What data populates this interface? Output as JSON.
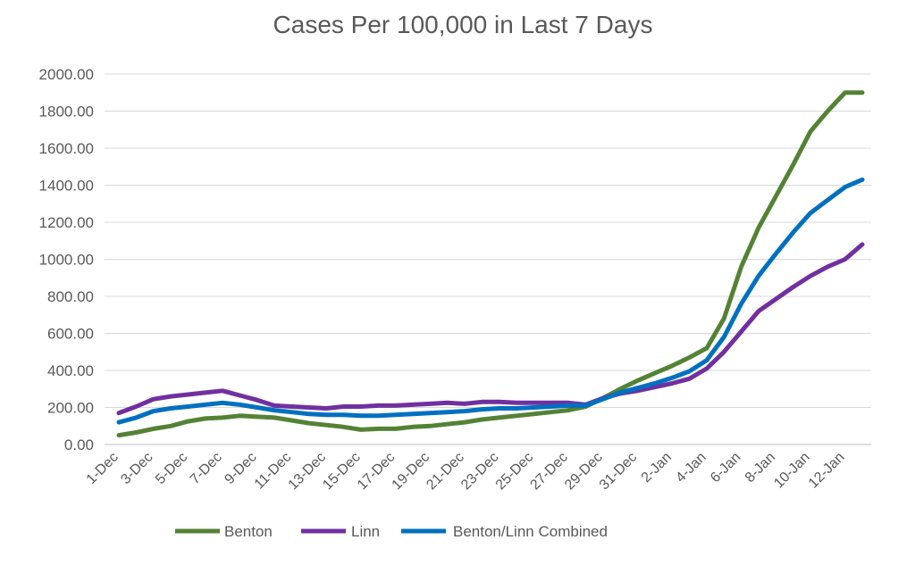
{
  "chart_data": {
    "type": "line",
    "title": "Cases Per 100,000 in Last 7 Days",
    "xlabel": "",
    "ylabel": "",
    "ylim": [
      0,
      2000
    ],
    "y_ticks": [
      "0.00",
      "200.00",
      "400.00",
      "600.00",
      "800.00",
      "1000.00",
      "1200.00",
      "1400.00",
      "1600.00",
      "1800.00",
      "2000.00"
    ],
    "grid": true,
    "legend_position": "bottom",
    "x": [
      "1-Dec",
      "2-Dec",
      "3-Dec",
      "4-Dec",
      "5-Dec",
      "6-Dec",
      "7-Dec",
      "8-Dec",
      "9-Dec",
      "10-Dec",
      "11-Dec",
      "12-Dec",
      "13-Dec",
      "14-Dec",
      "15-Dec",
      "16-Dec",
      "17-Dec",
      "18-Dec",
      "19-Dec",
      "20-Dec",
      "21-Dec",
      "22-Dec",
      "23-Dec",
      "24-Dec",
      "25-Dec",
      "26-Dec",
      "27-Dec",
      "28-Dec",
      "29-Dec",
      "30-Dec",
      "31-Dec",
      "1-Jan",
      "2-Jan",
      "3-Jan",
      "4-Jan",
      "5-Jan",
      "6-Jan",
      "7-Jan",
      "8-Jan",
      "9-Jan",
      "10-Jan",
      "11-Jan",
      "12-Jan",
      "13-Jan"
    ],
    "x_tick_labels": [
      "1-Dec",
      "3-Dec",
      "5-Dec",
      "7-Dec",
      "9-Dec",
      "11-Dec",
      "13-Dec",
      "15-Dec",
      "17-Dec",
      "19-Dec",
      "21-Dec",
      "23-Dec",
      "25-Dec",
      "27-Dec",
      "29-Dec",
      "31-Dec",
      "2-Jan",
      "4-Jan",
      "6-Jan",
      "8-Jan",
      "10-Jan",
      "12-Jan"
    ],
    "series": [
      {
        "name": "Benton",
        "color": "#548235",
        "values": [
          50,
          65,
          85,
          100,
          125,
          140,
          145,
          155,
          150,
          145,
          130,
          115,
          105,
          95,
          80,
          85,
          85,
          95,
          100,
          110,
          120,
          135,
          145,
          155,
          165,
          175,
          185,
          205,
          250,
          300,
          345,
          385,
          425,
          470,
          520,
          680,
          960,
          1170,
          1340,
          1510,
          1690,
          1800,
          1900,
          1900
        ]
      },
      {
        "name": "Linn",
        "color": "#7030a0",
        "values": [
          170,
          205,
          245,
          260,
          270,
          280,
          290,
          265,
          240,
          210,
          205,
          200,
          195,
          205,
          205,
          210,
          210,
          215,
          220,
          225,
          220,
          230,
          230,
          225,
          225,
          225,
          225,
          215,
          250,
          275,
          290,
          310,
          330,
          355,
          410,
          500,
          610,
          720,
          785,
          850,
          910,
          960,
          1000,
          1080
        ]
      },
      {
        "name": "Benton/Linn Combined",
        "color": "#0070c0",
        "values": [
          120,
          145,
          180,
          195,
          205,
          215,
          225,
          215,
          200,
          185,
          175,
          165,
          160,
          160,
          155,
          155,
          160,
          165,
          170,
          175,
          180,
          190,
          195,
          195,
          200,
          205,
          210,
          210,
          245,
          280,
          305,
          330,
          360,
          395,
          455,
          580,
          760,
          910,
          1030,
          1145,
          1250,
          1320,
          1390,
          1430
        ]
      }
    ]
  }
}
